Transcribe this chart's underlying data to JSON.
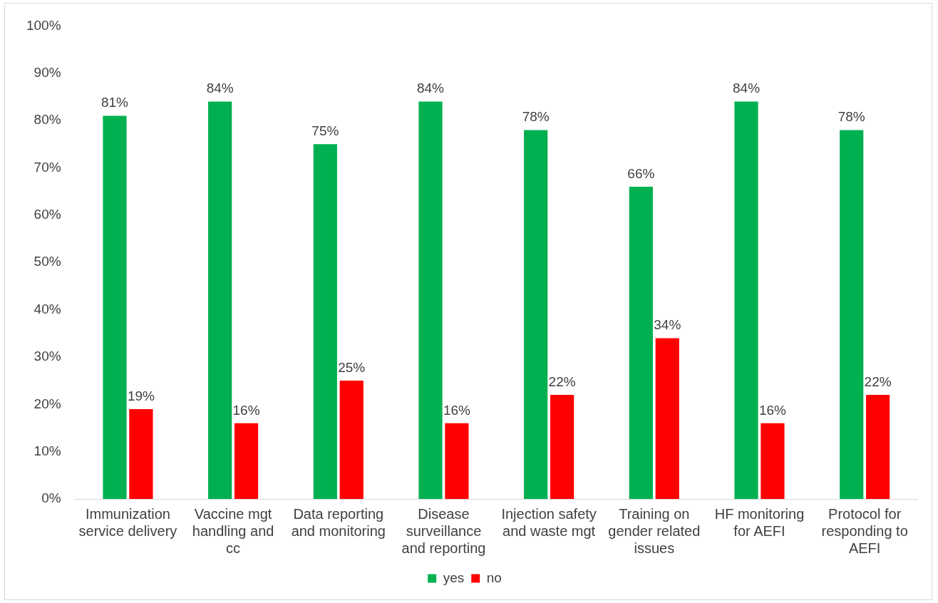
{
  "chart_data": {
    "type": "bar",
    "categories": [
      "Immunization service delivery",
      "Vaccine mgt handling and cc",
      "Data reporting and monitoring",
      "Disease surveillance and reporting",
      "Injection safety and waste mgt",
      "Training on gender related issues",
      "HF monitoring for AEFI",
      "Protocol for responding to AEFI"
    ],
    "series": [
      {
        "name": "yes",
        "color": "#00b050",
        "values": [
          81,
          84,
          75,
          84,
          78,
          66,
          84,
          78
        ],
        "value_labels": [
          "81%",
          "84%",
          "75%",
          "84%",
          "78%",
          "66%",
          "84%",
          "78%"
        ]
      },
      {
        "name": "no",
        "color": "#ff0000",
        "values": [
          19,
          16,
          25,
          16,
          22,
          34,
          16,
          22
        ],
        "value_labels": [
          "19%",
          "16%",
          "25%",
          "16%",
          "22%",
          "34%",
          "16%",
          "22%"
        ]
      }
    ],
    "ylim": [
      0,
      100
    ],
    "yticks": [
      {
        "value": 0,
        "label": "0%"
      },
      {
        "value": 10,
        "label": "10%"
      },
      {
        "value": 20,
        "label": "20%"
      },
      {
        "value": 30,
        "label": "30%"
      },
      {
        "value": 40,
        "label": "40%"
      },
      {
        "value": 50,
        "label": "50%"
      },
      {
        "value": 60,
        "label": "60%"
      },
      {
        "value": 70,
        "label": "70%"
      },
      {
        "value": 80,
        "label": "80%"
      },
      {
        "value": 90,
        "label": "90%"
      },
      {
        "value": 100,
        "label": "100%"
      }
    ],
    "grid": false,
    "legend": "bottom"
  }
}
